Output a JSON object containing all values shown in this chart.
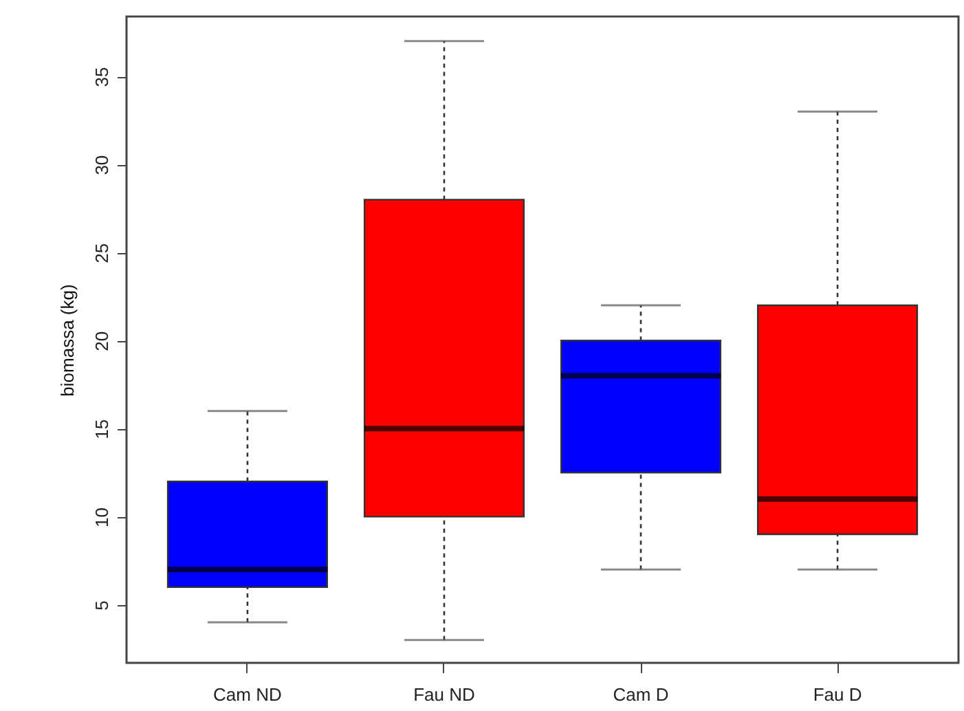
{
  "chart_data": {
    "type": "box",
    "ylabel": "biomassa (kg)",
    "categories": [
      "Cam  ND",
      "Fau  ND",
      "Cam  D",
      "Fau  D"
    ],
    "colors": [
      "#0000ff",
      "#ff0000",
      "#0000ff",
      "#ff0000"
    ],
    "boxes": [
      {
        "low": 4,
        "q1": 6,
        "median": 7,
        "q3": 12,
        "high": 16
      },
      {
        "low": 3,
        "q1": 10,
        "median": 15,
        "q3": 28,
        "high": 37
      },
      {
        "low": 7,
        "q1": 12.5,
        "median": 18,
        "q3": 20,
        "high": 22
      },
      {
        "low": 7,
        "q1": 9,
        "median": 11,
        "q3": 22,
        "high": 33
      }
    ],
    "ylim": [
      1.7,
      38.4
    ],
    "yticks": [
      5,
      10,
      15,
      20,
      25,
      30,
      35
    ],
    "grid": false
  }
}
